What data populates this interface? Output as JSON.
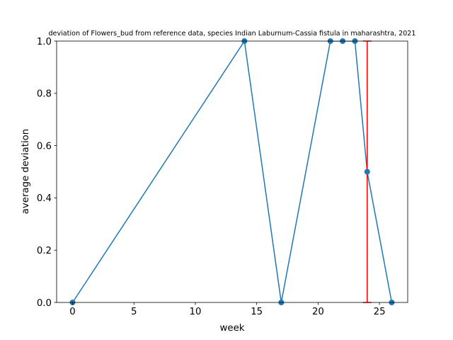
{
  "chart_data": {
    "type": "line",
    "title": "deviation of Flowers_bud from reference data, species Indian Laburnum-Cassia fistula in maharashtra, 2021",
    "xlabel": "week",
    "ylabel": "average deviation",
    "xlim": [
      -1.3,
      27.3
    ],
    "ylim": [
      0,
      1
    ],
    "xticks": [
      0,
      5,
      10,
      15,
      20,
      25
    ],
    "yticks": [
      0.0,
      0.2,
      0.4,
      0.6,
      0.8,
      1.0
    ],
    "xtick_labels": [
      "0",
      "5",
      "10",
      "15",
      "20",
      "25"
    ],
    "ytick_labels": [
      "0.0",
      "0.2",
      "0.4",
      "0.6",
      "0.8",
      "1.0"
    ],
    "grid": false,
    "legend": false,
    "series": [
      {
        "x": [
          0,
          14,
          17,
          21,
          22,
          23,
          24,
          26
        ],
        "y": [
          0.0,
          1.0,
          0.0,
          1.0,
          1.0,
          1.0,
          0.5,
          0.0
        ],
        "color": "#1f77b4",
        "marker": "circle"
      }
    ],
    "error_bars": [
      {
        "x": 24,
        "y": 0.5,
        "low": 0.0,
        "high": 1.0,
        "color": "#ff0000"
      }
    ]
  }
}
